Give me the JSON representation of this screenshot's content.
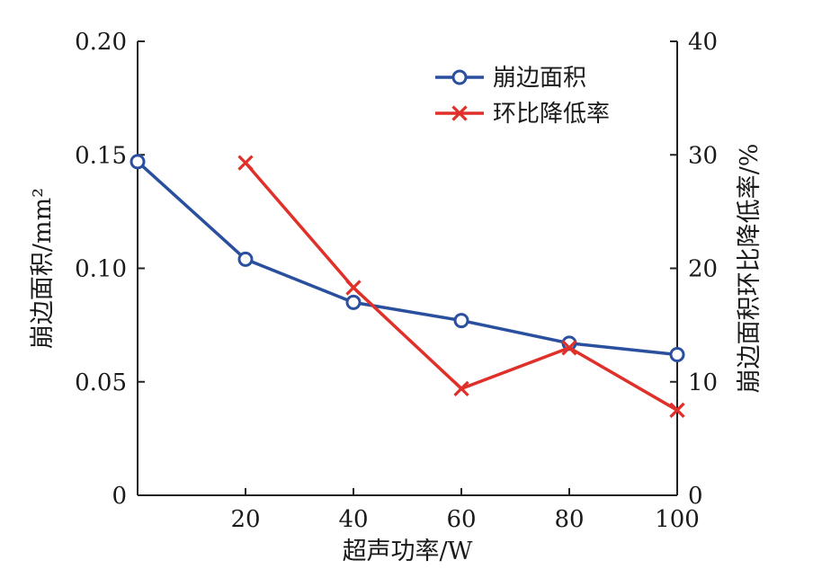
{
  "chart_data": {
    "type": "line",
    "x": [
      0,
      20,
      40,
      60,
      80,
      100
    ],
    "xlabel": "超声功率/W",
    "xlim": [
      0,
      100
    ],
    "x_ticks": [
      20,
      40,
      60,
      80,
      100
    ],
    "y_left": {
      "label": "崩边面积/mm²",
      "lim": [
        0,
        0.2
      ],
      "ticks": [
        "0",
        "0.05",
        "0.10",
        "0.15",
        "0.20"
      ],
      "tick_values": [
        0,
        0.05,
        0.1,
        0.15,
        0.2
      ]
    },
    "y_right": {
      "label": "崩边面积环比降低率/%",
      "lim": [
        0,
        40
      ],
      "ticks": [
        "0",
        "10",
        "20",
        "30",
        "40"
      ],
      "tick_values": [
        0,
        10,
        20,
        30,
        40
      ]
    },
    "series": [
      {
        "name": "崩边面积",
        "axis": "left",
        "color": "#2a4f9e",
        "marker": "circle",
        "points": [
          [
            0,
            0.147
          ],
          [
            20,
            0.104
          ],
          [
            40,
            0.085
          ],
          [
            60,
            0.077
          ],
          [
            80,
            0.067
          ],
          [
            100,
            0.062
          ]
        ]
      },
      {
        "name": "环比降低率",
        "axis": "right",
        "color": "#e0302a",
        "marker": "x",
        "points": [
          [
            20,
            29.3
          ],
          [
            40,
            18.3
          ],
          [
            60,
            9.4
          ],
          [
            80,
            13.0
          ],
          [
            100,
            7.5
          ]
        ]
      }
    ],
    "legend_position": "top-right",
    "grid": false
  }
}
